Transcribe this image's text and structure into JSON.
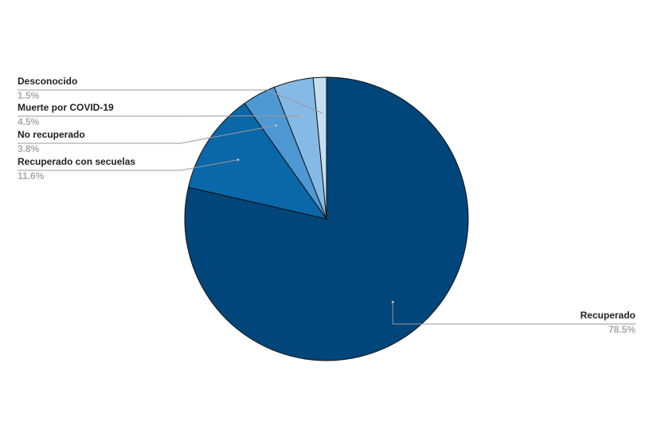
{
  "chart_data": {
    "type": "pie",
    "categories": [
      "Recuperado",
      "Recuperado con secuelas",
      "No recuperado",
      "Muerte por COVID-19",
      "Desconocido"
    ],
    "values": [
      78.5,
      11.6,
      3.8,
      4.5,
      1.5
    ],
    "value_labels": [
      "78.5%",
      "11.6%",
      "3.8%",
      "4.5%",
      "1.5%"
    ],
    "colors": [
      "#00467a",
      "#0a67a8",
      "#4e98d4",
      "#86bae6",
      "#c5def2"
    ]
  }
}
